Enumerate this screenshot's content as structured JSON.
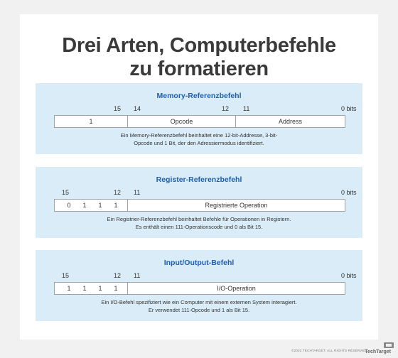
{
  "title_line1": "Drei Arten, Computerbefehle",
  "title_line2": "zu formatieren",
  "panels": [
    {
      "name": "memory",
      "title": "Memory-Referenzbefehl",
      "bits": {
        "b15": "15",
        "b14": "14",
        "b12": "12",
        "b11": "11",
        "b0": "0 bits"
      },
      "cells": {
        "indirect": "1",
        "opcode": "Opcode",
        "address": "Address"
      },
      "desc_line1": "Ein Memory-Referenzbefehl beinhaltet eine 12-bit-Addresse, 3-bit-",
      "desc_line2": "Opcode und 1 Bit, der den Adressiermodus identifiziert."
    },
    {
      "name": "register",
      "title": "Register-Referenzbefehl",
      "bits": {
        "b15": "15",
        "b12": "12",
        "b11": "11",
        "b0": "0 bits"
      },
      "cells": {
        "c1": "0",
        "c2": "1",
        "c3": "1",
        "c4": "1",
        "operation": "Registrierte Operation"
      },
      "desc_line1": "Ein Registrier-Referenzbefehl beinhaltet Befehle für Operationen in Registern.",
      "desc_line2": "Es enthält einen 111-Operationscode und 0 als Bit 15."
    },
    {
      "name": "io",
      "title": "Input/Output-Befehl",
      "bits": {
        "b15": "15",
        "b12": "12",
        "b11": "11",
        "b0": "0 bits"
      },
      "cells": {
        "c1": "1",
        "c2": "1",
        "c3": "1",
        "c4": "1",
        "operation": "I/O-Operation"
      },
      "desc_line1": "Ein I/O-Befehl spezifiziert wie ein Computer mit einem externen System interagiert.",
      "desc_line2": "Er verwendet 111-Opcode und 1 als Bit 15."
    }
  ],
  "footer": "©2023 TECHTARGET. ALL RIGHTS RESERVED",
  "logo": "TechTarget"
}
